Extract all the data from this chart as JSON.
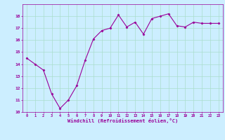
{
  "x": [
    0,
    1,
    2,
    3,
    4,
    5,
    6,
    7,
    8,
    9,
    10,
    11,
    12,
    13,
    14,
    15,
    16,
    17,
    18,
    19,
    20,
    21,
    22,
    23
  ],
  "y": [
    14.5,
    14.0,
    13.5,
    11.5,
    10.3,
    11.0,
    12.2,
    14.3,
    16.1,
    16.8,
    17.0,
    18.1,
    17.1,
    17.5,
    16.5,
    17.8,
    18.0,
    18.2,
    17.2,
    17.1,
    17.5,
    17.4,
    17.4,
    17.4
  ],
  "line_color": "#990099",
  "marker": "D",
  "marker_size": 1.5,
  "bg_color": "#cceeff",
  "grid_color": "#aaddcc",
  "xlabel": "Windchill (Refroidissement éolien,°C)",
  "xlabel_color": "#990099",
  "tick_color": "#990099",
  "ylim": [
    10,
    19
  ],
  "xlim": [
    -0.5,
    23.5
  ],
  "yticks": [
    10,
    11,
    12,
    13,
    14,
    15,
    16,
    17,
    18
  ],
  "xticks": [
    0,
    1,
    2,
    3,
    4,
    5,
    6,
    7,
    8,
    9,
    10,
    11,
    12,
    13,
    14,
    15,
    16,
    17,
    18,
    19,
    20,
    21,
    22,
    23
  ],
  "line_width": 0.8,
  "figsize": [
    3.2,
    2.0
  ],
  "dpi": 100
}
